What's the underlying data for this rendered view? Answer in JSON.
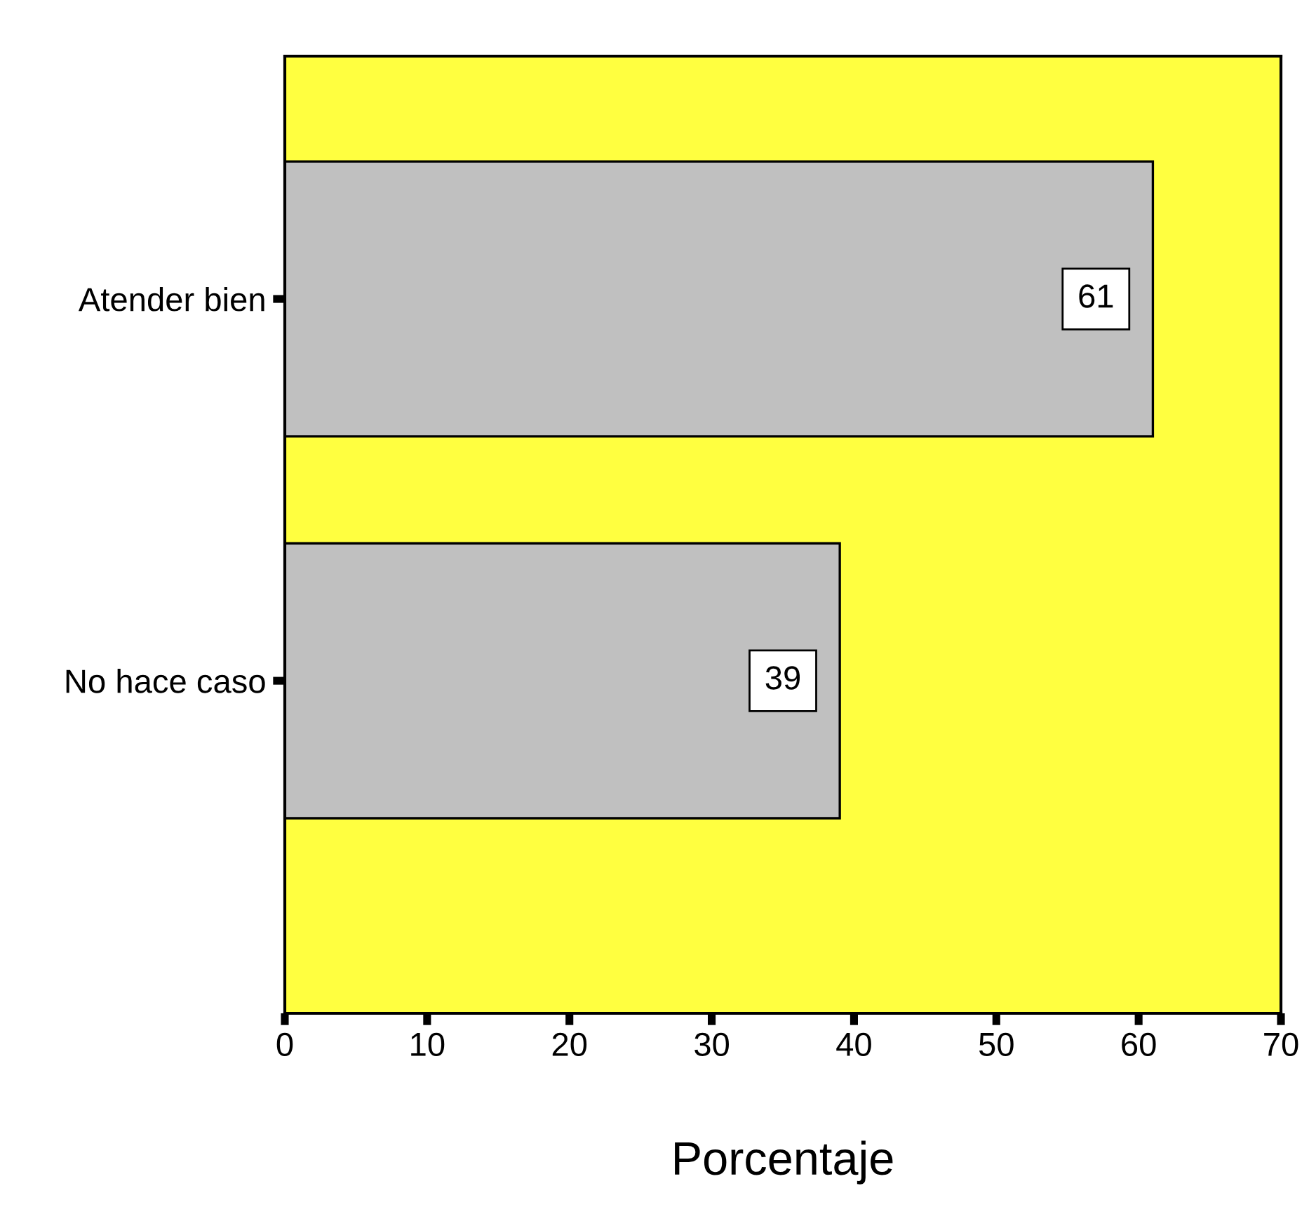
{
  "chart_data": {
    "type": "bar",
    "orientation": "horizontal",
    "xlabel": "Porcentaje",
    "categories": [
      "Atender bien",
      "No hace caso"
    ],
    "values": [
      61,
      39
    ],
    "color": "#c0c0c0",
    "xlim": [
      0,
      70
    ],
    "xticks": [
      0,
      10,
      20,
      30,
      40,
      50,
      60,
      70
    ],
    "data_labels": true,
    "grid": false,
    "legend": false
  }
}
